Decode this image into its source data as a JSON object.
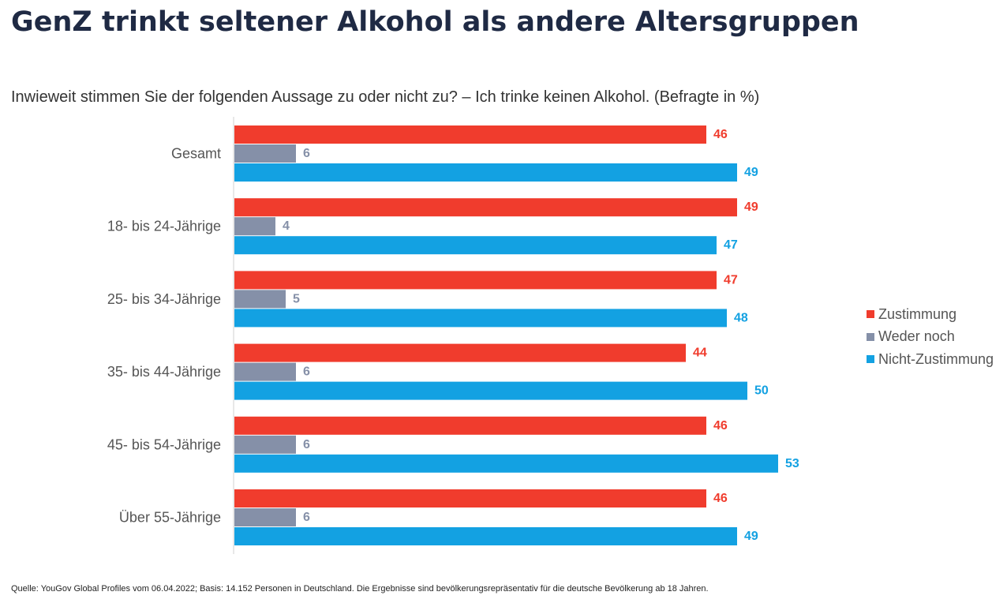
{
  "title": "GenZ trinkt seltener Alkohol als andere Altersgruppen",
  "subtitle": "Inwieweit stimmen Sie der folgenden Aussage zu oder nicht zu? – Ich trinke keinen Alkohol. (Befragte in %)",
  "source": "Quelle: YouGov Global Profiles vom 06.04.2022; Basis: 14.152 Personen in Deutschland. Die Ergebnisse sind bevölkerungsrepräsentativ für die deutsche Bevölkerung ab 18 Jahren.",
  "chart_data": {
    "type": "bar",
    "orientation": "horizontal",
    "categories": [
      "Gesamt",
      "18- bis 24-Jährige",
      "25- bis 34-Jährige",
      "35- bis 44-Jährige",
      "45- bis 54-Jährige",
      "Über 55-Jährige"
    ],
    "series": [
      {
        "name": "Zustimmung",
        "color": "#f03c2d",
        "values": [
          46,
          49,
          47,
          44,
          46,
          46
        ]
      },
      {
        "name": "Weder noch",
        "color": "#8590a8",
        "values": [
          6,
          4,
          5,
          6,
          6,
          6
        ]
      },
      {
        "name": "Nicht-Zustimmung",
        "color": "#13a1e2",
        "values": [
          49,
          47,
          48,
          50,
          53,
          49
        ]
      }
    ],
    "xlim": [
      0,
      60
    ],
    "data_labels": true,
    "grid": false,
    "legend": "right"
  }
}
